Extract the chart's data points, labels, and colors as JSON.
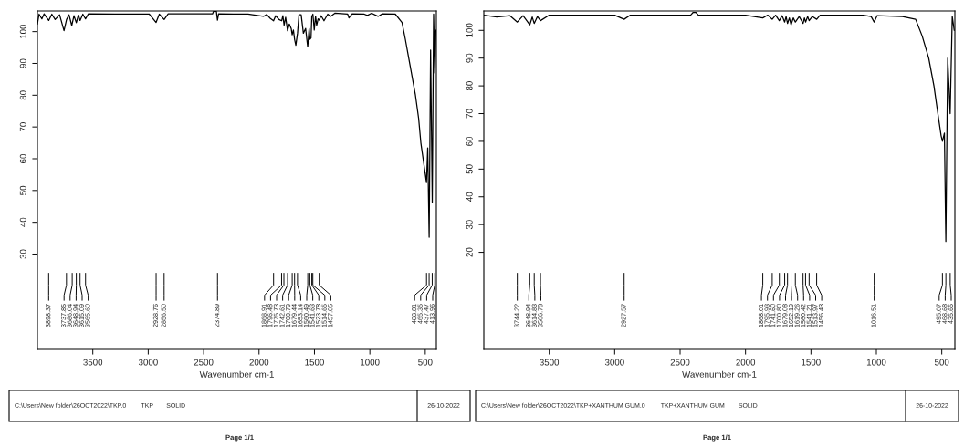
{
  "chart_data": [
    {
      "type": "line",
      "xlabel": "Wavenumber cm-1",
      "xlim": [
        4000,
        400
      ],
      "ylim": [
        0,
        106.5
      ],
      "xticks": [
        3500,
        3000,
        2500,
        2000,
        1500,
        1000,
        500
      ],
      "yticks": [
        30,
        40,
        50,
        60,
        70,
        80,
        90,
        100
      ],
      "grid": false,
      "series": [
        {
          "color": "#000000",
          "x": [
            4000,
            3985,
            3960,
            3940,
            3898,
            3870,
            3840,
            3800,
            3760,
            3737,
            3715,
            3690,
            3670,
            3649,
            3630,
            3615,
            3590,
            3566,
            3540,
            3300,
            2990,
            2929,
            2900,
            2856,
            2820,
            2420,
            2410,
            2385,
            2375,
            2365,
            2100,
            1960,
            1930,
            1900,
            1869,
            1850,
            1820,
            1796,
            1785,
            1774,
            1760,
            1743,
            1727,
            1710,
            1701,
            1690,
            1679,
            1668,
            1653,
            1640,
            1620,
            1600,
            1580,
            1561,
            1548,
            1541,
            1531,
            1524,
            1514,
            1502,
            1490,
            1480,
            1467,
            1457,
            1440,
            1414,
            1380,
            1355,
            1316,
            1200,
            1189,
            1160,
            1050,
            1023,
            984,
            926,
            887,
            770,
            710,
            680,
            640,
            590,
            560,
            540,
            489,
            478,
            465,
            452,
            437,
            425,
            414,
            405
          ],
          "values": [
            102.4,
            105.5,
            104.0,
            105.6,
            103.5,
            105.5,
            103.8,
            105.3,
            100.3,
            103.8,
            105.3,
            101.9,
            105.0,
            102.8,
            105.2,
            103.5,
            105.5,
            104.0,
            105.6,
            105.5,
            105.5,
            102.9,
            105.5,
            103.8,
            105.6,
            105.6,
            106.4,
            106.4,
            103.6,
            105.6,
            105.5,
            104.8,
            105.4,
            104.2,
            103.4,
            105.0,
            103.8,
            103.4,
            105.0,
            102.0,
            104.5,
            100.3,
            102.4,
            101.0,
            99.0,
            100.5,
            97.5,
            95.7,
            99.5,
            105.3,
            105.3,
            99.5,
            101.0,
            95.2,
            101.0,
            97.6,
            98.0,
            104.8,
            105.5,
            100.5,
            104.8,
            102.0,
            104.0,
            103.6,
            105.0,
            103.4,
            105.5,
            104.8,
            105.8,
            105.5,
            104.3,
            105.6,
            105.5,
            105.1,
            105.8,
            104.8,
            105.6,
            105.5,
            102.9,
            97.6,
            89.9,
            80.3,
            72.7,
            65,
            52.5,
            63.4,
            35.3,
            94.2,
            46.3,
            105.5,
            87,
            100.5
          ]
        }
      ],
      "annotations": [
        "3898.37",
        "3737.85",
        "3686.04",
        "3648.94",
        "3615.09",
        "3565.60",
        "2928.76",
        "2856.50",
        "2374.89",
        "1868.91",
        "1796.48",
        "1775.73",
        "1742.61",
        "1700.79",
        "1679.44",
        "1653.14",
        "1560.49",
        "1541.63",
        "1523.78",
        "1514.65",
        "1457.05",
        "488.81",
        "465.35",
        "437.47",
        "413.96",
        "C:\\Users\\New folder\\26OCT2022\\TKP.0",
        "TKP",
        "SOLID",
        "26-10-2022",
        "Page 1/1"
      ]
    },
    {
      "type": "line",
      "xlabel": "Wavenumber cm-1",
      "xlim": [
        4000,
        400
      ],
      "ylim": [
        -15,
        107
      ],
      "xticks": [
        3500,
        3000,
        2500,
        2000,
        1500,
        1000,
        500
      ],
      "yticks": [
        20,
        30,
        40,
        50,
        60,
        70,
        80,
        90,
        100
      ],
      "grid": false,
      "series": [
        {
          "color": "#000000",
          "x": [
            4000,
            3900,
            3800,
            3744,
            3700,
            3649,
            3630,
            3615,
            3590,
            3567,
            3500,
            3000,
            2928,
            2880,
            2420,
            2400,
            2380,
            2360,
            2000,
            1868,
            1830,
            1796,
            1770,
            1742,
            1720,
            1701,
            1690,
            1679,
            1665,
            1652,
            1635,
            1619,
            1590,
            1560,
            1550,
            1541,
            1525,
            1514,
            1490,
            1456,
            1430,
            1100,
            1040,
            1017,
            995,
            800,
            700,
            650,
            600,
            560,
            530,
            505,
            495,
            480,
            469,
            455,
            436,
            420,
            405
          ],
          "values": [
            105.5,
            104.8,
            105.3,
            103.0,
            105.3,
            102.0,
            104.8,
            102.5,
            105.0,
            103.5,
            105.5,
            105.5,
            104.0,
            105.5,
            105.5,
            106.5,
            106.5,
            105.5,
            105.5,
            104.5,
            105.5,
            104.0,
            105.5,
            103.5,
            105.3,
            103.0,
            105.0,
            102.5,
            104.5,
            102.0,
            104.5,
            103.0,
            105.0,
            102.5,
            104.5,
            103.0,
            105.0,
            103.5,
            105.0,
            104.0,
            105.5,
            105.5,
            105.0,
            103.0,
            105.3,
            105.0,
            104.0,
            98,
            90,
            80,
            70,
            62,
            60,
            63,
            23.9,
            90,
            70,
            105,
            100
          ]
        }
      ],
      "annotations": [
        "3744.22",
        "3648.94",
        "3614.83",
        "3566.78",
        "2927.57",
        "1868.01",
        "1795.93",
        "1741.60",
        "1700.80",
        "1679.08",
        "1652.19",
        "1619.26",
        "1560.42",
        "1541.21",
        "1513.97",
        "1456.43",
        "1016.51",
        "495.07",
        "468.68",
        "435.65",
        "C:\\Users\\New folder\\26OCT2022\\TKP+XANTHUM GUM.0",
        "TKP+XANTHUM GUM",
        "SOLID",
        "26-10-2022",
        "Page 1/1"
      ]
    }
  ]
}
